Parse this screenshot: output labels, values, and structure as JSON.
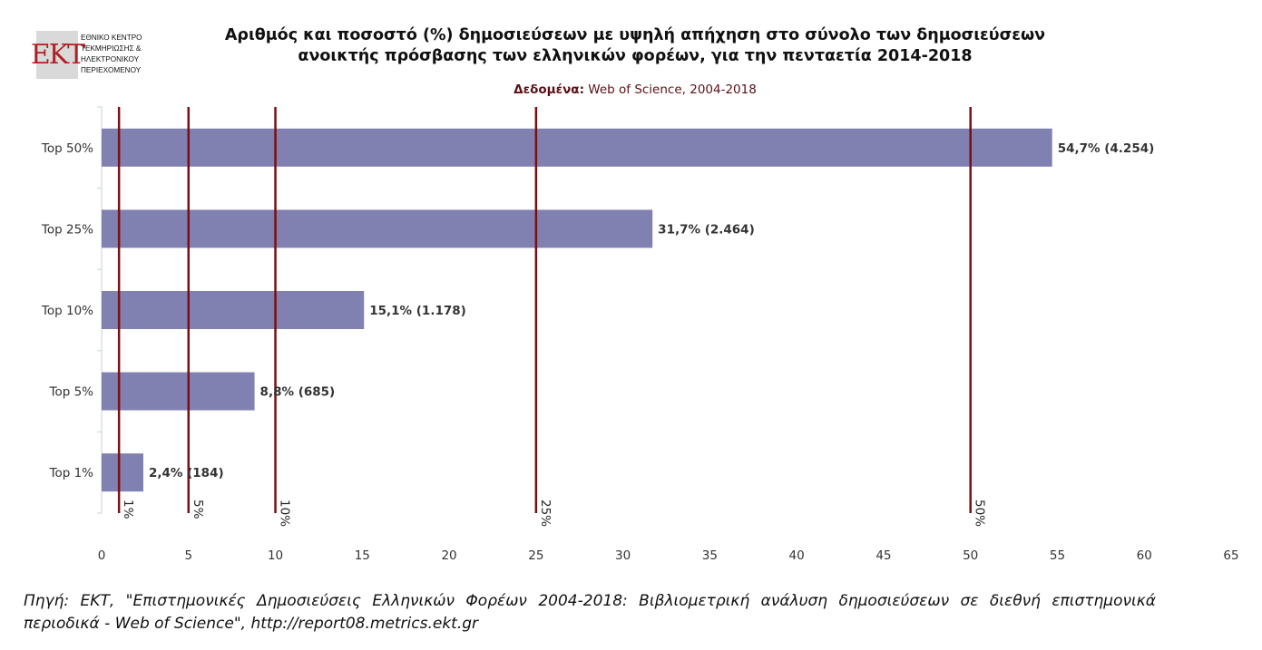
{
  "logo": {
    "mark": "EKT",
    "lines": [
      "ΕΘΝΙΚΟ ΚΕΝΤΡΟ",
      "ΤΕΚΜΗΡΙΩΣΗΣ &",
      "ΗΛΕΚΤΡΟΝΙΚΟΥ",
      "ΠΕΡΙΕΧΟΜΕΝΟΥ"
    ]
  },
  "header": {
    "title_line1": "Αριθμός και ποσοστό (%) δημοσιεύσεων με υψηλή απήχηση στο σύνολο των δημοσιεύσεων",
    "title_line2": "ανοικτής πρόσβασης των ελληνικών φορέων, για την πενταετία 2014-2018",
    "data_label": "Δεδομένα:",
    "data_value": " Web of Science, 2004-2018"
  },
  "chart_data": {
    "type": "bar",
    "orientation": "horizontal",
    "categories": [
      "Top 50%",
      "Top 25%",
      "Top 10%",
      "Top 5%",
      "Top 1%"
    ],
    "values": [
      54.7,
      31.7,
      15.1,
      8.8,
      2.4
    ],
    "counts": [
      4254,
      2464,
      1178,
      685,
      184
    ],
    "data_labels": [
      "54,7% (4.254)",
      "31,7% (2.464)",
      "15,1% (1.178)",
      "8,8% (685)",
      "2,4% (184)"
    ],
    "xlim": [
      0,
      65
    ],
    "xticks": [
      0,
      5,
      10,
      15,
      20,
      25,
      30,
      35,
      40,
      45,
      50,
      55,
      60,
      65
    ],
    "reference_lines": [
      {
        "value": 1,
        "label": "1%"
      },
      {
        "value": 5,
        "label": "5%"
      },
      {
        "value": 10,
        "label": "10%"
      },
      {
        "value": 25,
        "label": "25%"
      },
      {
        "value": 50,
        "label": "50%"
      }
    ],
    "colors": {
      "bar": "#8080b1",
      "reference": "#7a0f12",
      "axis": "#c0d0e0"
    },
    "grid": false,
    "legend": "none"
  },
  "footer": {
    "source": "Πηγή: ΕΚΤ, \"Επιστημονικές Δημοσιεύσεις Ελληνικών Φορέων 2004-2018: Βιβλιομετρική ανάλυση δημοσιεύσεων σε διεθνή επιστημονικά περιοδικά - Web of Science\", http://report08.metrics.ekt.gr"
  }
}
